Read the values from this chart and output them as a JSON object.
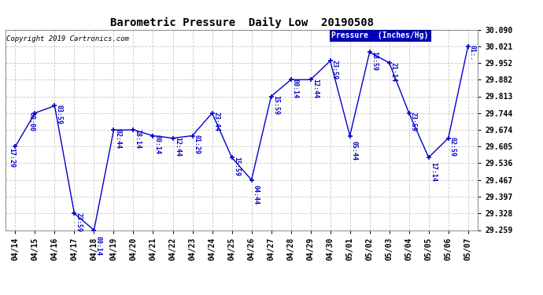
{
  "title": "Barometric Pressure  Daily Low  20190508",
  "legend_label": "Pressure  (Inches/Hg)",
  "copyright": "Copyright 2019 Cartronics.com",
  "line_color": "#0000cc",
  "bg_color": "#ffffff",
  "grid_color": "#c8c8c8",
  "legend_bg": "#0000bb",
  "legend_fg": "#ffffff",
  "ylim_min": 29.259,
  "ylim_max": 30.09,
  "yticks": [
    29.259,
    29.328,
    29.397,
    29.467,
    29.536,
    29.605,
    29.674,
    29.744,
    29.813,
    29.882,
    29.952,
    30.021,
    30.09
  ],
  "dates": [
    "04/14",
    "04/15",
    "04/16",
    "04/17",
    "04/18",
    "04/19",
    "04/20",
    "04/21",
    "04/22",
    "04/23",
    "04/24",
    "04/25",
    "04/26",
    "04/27",
    "04/28",
    "04/29",
    "04/30",
    "05/01",
    "05/02",
    "05/03",
    "05/04",
    "05/05",
    "05/06",
    "05/07"
  ],
  "values": [
    29.605,
    29.744,
    29.774,
    29.328,
    29.259,
    29.674,
    29.674,
    29.65,
    29.64,
    29.65,
    29.744,
    29.56,
    29.467,
    29.813,
    29.882,
    29.882,
    29.96,
    29.65,
    29.996,
    29.952,
    29.744,
    29.56,
    29.64,
    30.021
  ],
  "point_labels": [
    "17:29",
    "00:00",
    "03:59",
    "23:59",
    "00:14",
    "02:44",
    "18:14",
    "00:14",
    "12:44",
    "01:29",
    "23:44",
    "15:59",
    "04:44",
    "15:59",
    "00:14",
    "12:44",
    "23:59",
    "05:44",
    "18:59",
    "21:14",
    "23:59",
    "17:14",
    "02:59",
    "01:."
  ]
}
